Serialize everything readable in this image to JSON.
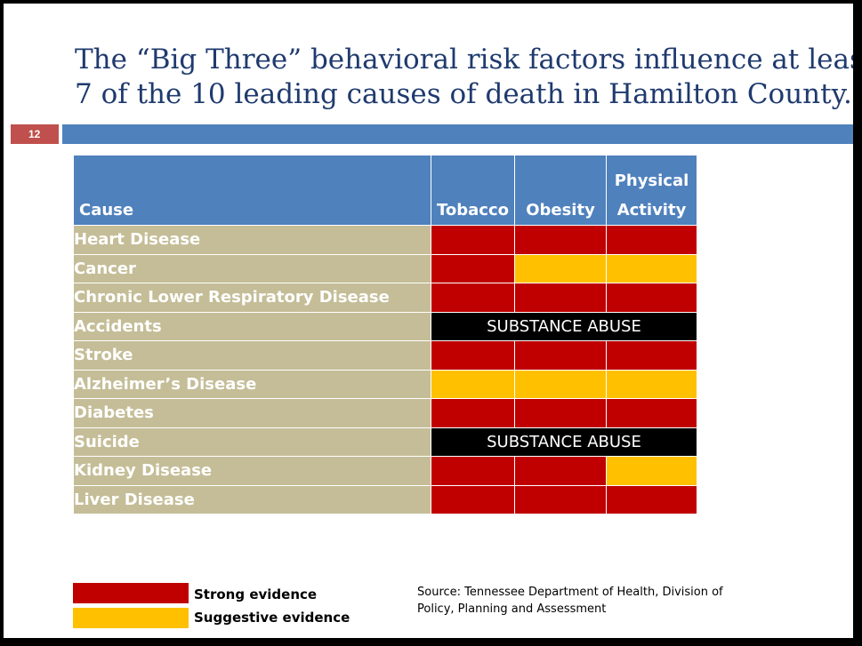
{
  "slide": {
    "title_line1": "The “Big Three” behavioral risk factors influence at least",
    "title_line2": "7 of the 10 leading causes of death in Hamilton County.",
    "slide_number": "12"
  },
  "colors": {
    "strong": "#c00000",
    "suggestive": "#ffc000",
    "header": "#4f81bd",
    "cause": "#c4bd97",
    "accent": "#c0504d"
  },
  "table": {
    "headers": {
      "cause": "Cause",
      "tobacco": "Tobacco",
      "obesity": "Obesity",
      "physical_activity": "Physical Activity"
    },
    "rows": [
      {
        "cause": "Heart Disease",
        "cells": [
          "strong",
          "strong",
          "strong"
        ]
      },
      {
        "cause": "Cancer",
        "cells": [
          "strong",
          "suggestive",
          "suggestive"
        ]
      },
      {
        "cause": "Chronic Lower Respiratory Disease",
        "cells": [
          "strong",
          "strong",
          "strong"
        ]
      },
      {
        "cause": "Accidents",
        "merged": "SUBSTANCE ABUSE"
      },
      {
        "cause": "Stroke",
        "cells": [
          "strong",
          "strong",
          "strong"
        ]
      },
      {
        "cause": "Alzheimer’s Disease",
        "cells": [
          "suggestive",
          "suggestive",
          "suggestive"
        ]
      },
      {
        "cause": "Diabetes",
        "cells": [
          "strong",
          "strong",
          "strong"
        ]
      },
      {
        "cause": "Suicide",
        "merged": "SUBSTANCE ABUSE"
      },
      {
        "cause": "Kidney Disease",
        "cells": [
          "strong",
          "strong",
          "suggestive"
        ]
      },
      {
        "cause": "Liver Disease",
        "cells": [
          "strong",
          "strong",
          "strong"
        ]
      }
    ]
  },
  "legend": {
    "strong_label": "Strong evidence",
    "suggestive_label": "Suggestive evidence"
  },
  "source": {
    "line1": "Source: Tennessee Department of Health, Division of",
    "line2": "Policy, Planning and Assessment"
  }
}
